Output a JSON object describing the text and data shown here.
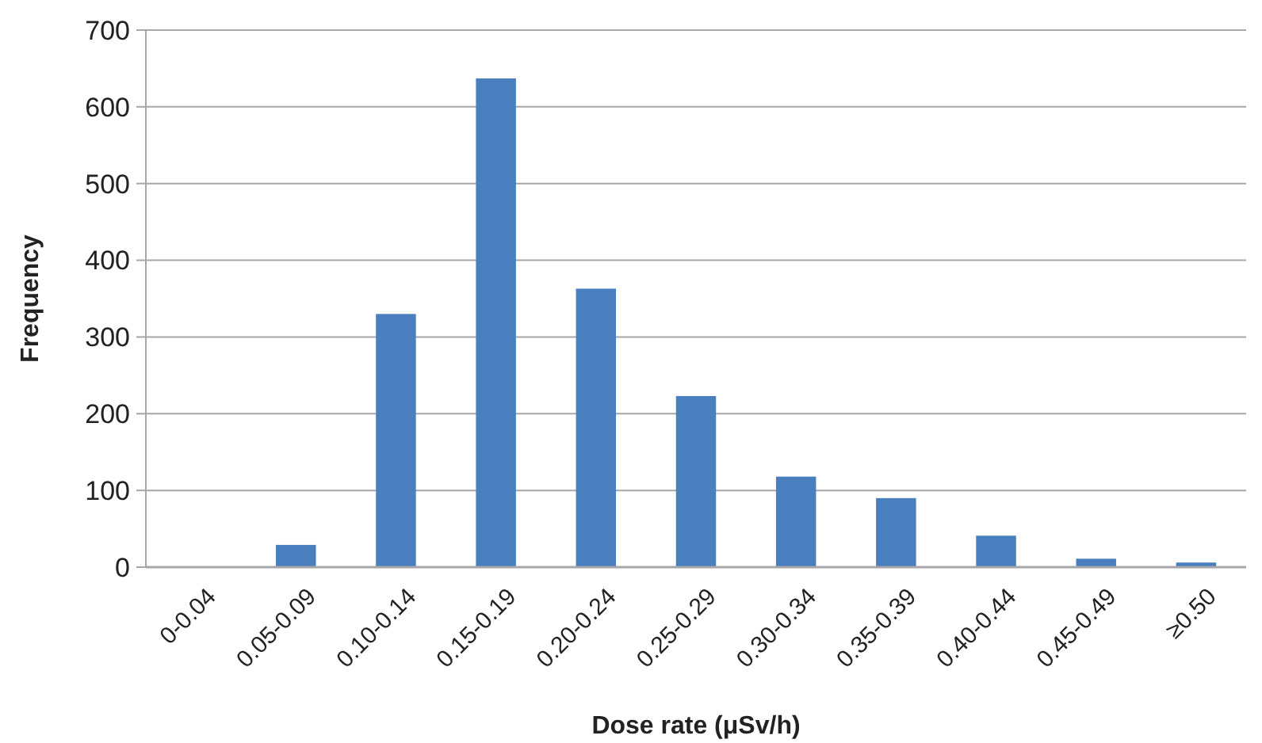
{
  "chart_data": {
    "type": "bar",
    "xlabel": "Dose rate (μSv/h)",
    "ylabel": "Frequency",
    "categories": [
      "0-0.04",
      "0.05-0.09",
      "0.10-0.14",
      "0.15-0.19",
      "0.20-0.24",
      "0.25-0.29",
      "0.30-0.34",
      "0.35-0.39",
      "0.40-0.44",
      "0.45-0.49",
      "≥0.50"
    ],
    "values": [
      0,
      29,
      330,
      637,
      363,
      223,
      118,
      90,
      41,
      11,
      6
    ],
    "color": "#4a7fbf",
    "ylim": [
      0,
      700
    ],
    "yticks": [
      0,
      100,
      200,
      300,
      400,
      500,
      600,
      700
    ],
    "grid": "y"
  }
}
